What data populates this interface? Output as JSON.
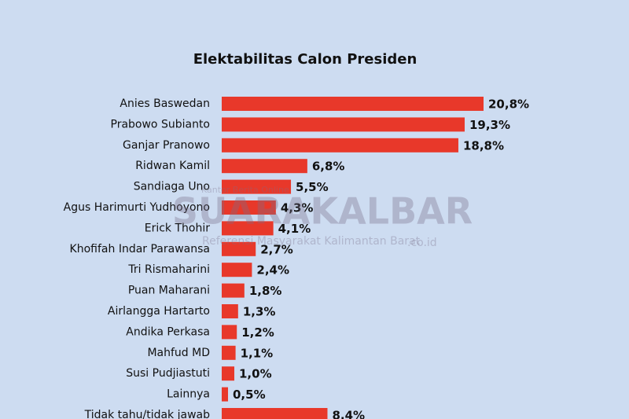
{
  "chart_data": {
    "type": "barh",
    "title": "Elektabilitas Calon Presiden",
    "categories": [
      "Anies Baswedan",
      "Prabowo Subianto",
      "Ganjar Pranowo",
      "Ridwan Kamil",
      "Sandiaga Uno",
      "Agus Harimurti Yudhoyono",
      "Erick Thohir",
      "Khofifah Indar Parawansa",
      "Tri Rismaharini",
      "Puan Maharani",
      "Airlangga Hartarto",
      "Andika Perkasa",
      "Mahfud MD",
      "Susi Pudjiastuti",
      "Lainnya",
      "Tidak tahu/tidak jawab"
    ],
    "values": [
      20.8,
      19.3,
      18.8,
      6.8,
      5.5,
      4.3,
      4.1,
      2.7,
      2.4,
      1.8,
      1.3,
      1.2,
      1.1,
      1.0,
      0.5,
      8.4
    ],
    "value_labels": [
      "20,8%",
      "19,3%",
      "18,8%",
      "6,8%",
      "5,5%",
      "4,3%",
      "4,1%",
      "2,7%",
      "2,4%",
      "1,8%",
      "1,3%",
      "1,2%",
      "1,1%",
      "1,0%",
      "0,5%",
      "8,4%"
    ],
    "color": "#e8382a",
    "annotations": [
      "Kantor Berita Online",
      "SUARAKALBAR",
      "Referensi Masyarakat Kalimantan Barat",
      ".co.id"
    ]
  }
}
